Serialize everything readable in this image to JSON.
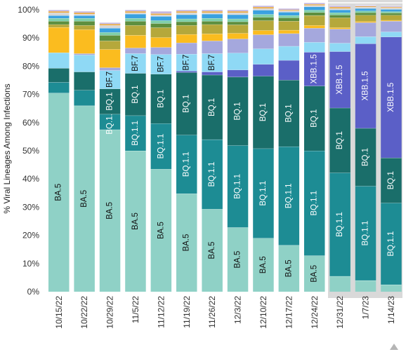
{
  "chart_data": {
    "type": "bar",
    "stacked": true,
    "ylabel": "% Viral Lineages Among Infections",
    "ylim": [
      0,
      100
    ],
    "yticks": [
      "0%",
      "10%",
      "20%",
      "30%",
      "40%",
      "50%",
      "60%",
      "70%",
      "80%",
      "90%",
      "100%"
    ],
    "categories": [
      "10/15/22",
      "10/22/22",
      "10/29/22",
      "11/5/22",
      "11/12/22",
      "11/19/22",
      "11/26/22",
      "12/3/22",
      "12/10/22",
      "12/17/22",
      "12/24/22",
      "12/31/22",
      "1/7/23",
      "1/14/23"
    ],
    "highlighted_categories": [
      "12/31/22",
      "1/7/23",
      "1/14/23"
    ],
    "series": [
      {
        "name": "BA.5",
        "color": "#8fd1c6",
        "label_color": "#111111",
        "values": [
          70.5,
          66,
          57.5,
          50,
          43.5,
          34.8,
          29.3,
          22.8,
          19,
          16.5,
          12.8,
          5.5,
          4,
          2.5
        ],
        "labels": [
          "BA.5",
          "BA.5",
          "BA.5",
          "BA.5",
          "BA.5",
          "BA.5",
          "BA.5",
          "BA.5",
          "BA.5",
          "BA.5",
          "BA.5",
          "",
          "",
          ""
        ]
      },
      {
        "name": "BQ.1.1",
        "color": "#1d8c94",
        "label_color": "#ffffff",
        "values": [
          3.8,
          5.5,
          5.5,
          12.5,
          16.2,
          20.8,
          24.7,
          29.1,
          31.8,
          35,
          37.2,
          36.7,
          33.5,
          29
        ],
        "labels": [
          "",
          "",
          "BQ.1.1",
          "BQ.1.1",
          "BQ.1.1",
          "BQ.1.1",
          "BQ.1.1",
          "BQ.1.1",
          "BQ.1.1",
          "BQ.1.1",
          "BQ.1.1",
          "BQ.1.1",
          "BQ.1.1",
          "BQ.1.1"
        ]
      },
      {
        "name": "BQ.1",
        "color": "#1a6e6a",
        "label_color": "#ffffff",
        "values": [
          5,
          6.5,
          9,
          15,
          17.5,
          22.2,
          22.9,
          24.3,
          25.7,
          23.6,
          23,
          23,
          20.5,
          16
        ],
        "labels": [
          "",
          "",
          "BQ.1",
          "BQ.1",
          "BQ.1",
          "BQ.1",
          "BQ.1",
          "BQ.1",
          "BQ.1",
          "BQ.1",
          "BQ.1",
          "BQ.1",
          "BQ.1",
          "BQ.1"
        ]
      },
      {
        "name": "XBB.1.5",
        "color": "#5b5fc7",
        "label_color": "#ffffff",
        "values": [
          0,
          0,
          0,
          0,
          0,
          0.5,
          1.1,
          2.5,
          4.2,
          7,
          12,
          20,
          30,
          42.9
        ],
        "labels": [
          "",
          "",
          "",
          "",
          "",
          "",
          "",
          "",
          "",
          "",
          "XBB.1.5",
          "XBB.1.5",
          "XBB.1.5",
          "XBB.1.5"
        ]
      },
      {
        "name": "BF.7",
        "color": "#8fd9f5",
        "label_color": "#111111",
        "values": [
          5.5,
          6,
          6.5,
          7,
          7,
          6,
          6.5,
          6,
          5.5,
          5,
          3.5,
          3,
          2.5,
          1.8
        ],
        "labels": [
          "",
          "",
          "BF.7",
          "BF.7",
          "BF.7",
          "BF.7",
          "BF.7",
          "",
          "",
          "",
          "",
          "",
          "",
          ""
        ]
      },
      {
        "name": "",
        "color": "#a5a8dd",
        "label_color": "#111111",
        "values": [
          0,
          0.5,
          1,
          2,
          2.5,
          4,
          4.5,
          5,
          5,
          4.5,
          5,
          5,
          5,
          3.8
        ],
        "labels": [
          "",
          "",
          "",
          "",
          "",
          "",
          "",
          "",
          "",
          "",
          "",
          "",
          "",
          ""
        ]
      },
      {
        "name": "",
        "color": "#fbbc1f",
        "label_color": "#111111",
        "values": [
          9,
          8.5,
          6.5,
          4.5,
          3.5,
          3,
          2.5,
          2,
          1.5,
          1.2,
          1,
          0.5,
          0.4,
          0.3
        ],
        "labels": [
          "",
          "",
          "",
          "",
          "",
          "",
          "",
          "",
          "",
          "",
          "",
          "",
          "",
          ""
        ]
      },
      {
        "name": "",
        "color": "#b5a83b",
        "label_color": "#111111",
        "values": [
          1,
          1.5,
          3,
          3.5,
          3.5,
          3.2,
          3.3,
          3,
          3.5,
          3.2,
          3.5,
          3.5,
          2.2,
          1.8
        ],
        "labels": [
          "",
          "",
          "",
          "",
          "",
          "",
          "",
          "",
          "",
          "",
          "",
          "",
          "",
          ""
        ]
      },
      {
        "name": "",
        "color": "#5d8f3f",
        "label_color": "#111111",
        "values": [
          1.2,
          1.5,
          2,
          1.5,
          1.5,
          1.3,
          1.2,
          1.1,
          1.2,
          1.2,
          1.1,
          1,
          0.9,
          0.8
        ],
        "labels": [
          "",
          "",
          "",
          "",
          "",
          "",
          "",
          "",
          "",
          "",
          "",
          "",
          "",
          ""
        ]
      },
      {
        "name": "",
        "color": "#7fcfa9",
        "label_color": "#111111",
        "values": [
          1,
          1,
          1,
          1,
          1,
          1,
          1,
          1,
          1,
          0.8,
          0.8,
          0.8,
          0.6,
          0.5
        ],
        "labels": [
          "",
          "",
          "",
          "",
          "",
          "",
          "",
          "",
          "",
          "",
          "",
          "",
          "",
          ""
        ]
      },
      {
        "name": "",
        "color": "#3aa1e0",
        "label_color": "#111111",
        "values": [
          1,
          1,
          1.5,
          1.5,
          1.5,
          1.5,
          1.5,
          1.5,
          1.5,
          1.2,
          1.2,
          1,
          0.9,
          0.8
        ],
        "labels": [
          "",
          "",
          "",
          "",
          "",
          "",
          "",
          "",
          "",
          "",
          "",
          "",
          "",
          ""
        ]
      },
      {
        "name": "",
        "color": "#d6d6d6",
        "label_color": "#111111",
        "values": [
          1,
          0.5,
          1,
          0.5,
          0.5,
          0.7,
          0.5,
          0.7,
          0.6,
          0.5,
          0.5,
          0.5,
          0.5,
          0.5
        ],
        "labels": [
          "",
          "",
          "",
          "",
          "",
          "",
          "",
          "",
          "",
          "",
          "",
          "",
          "",
          ""
        ]
      },
      {
        "name": "",
        "color": "#e8a63b",
        "label_color": "#111111",
        "values": [
          0.5,
          0.5,
          0.5,
          0.5,
          0.5,
          0.5,
          0.5,
          0.5,
          0.5,
          0.3,
          0.4,
          0.5,
          0.3,
          0.3
        ],
        "labels": [
          "",
          "",
          "",
          "",
          "",
          "",
          "",
          "",
          "",
          "",
          "",
          "",
          "",
          ""
        ]
      },
      {
        "name": "",
        "color": "#c4b7e0",
        "label_color": "#111111",
        "values": [
          0.5,
          0.5,
          0.5,
          0.5,
          0.8,
          0.5,
          0.5,
          0.5,
          0.5,
          0.5,
          0.5,
          0.5,
          0.3,
          0.3
        ],
        "labels": [
          "",
          "",
          "",
          "",
          "",
          "",
          "",
          "",
          "",
          "",
          "",
          "",
          "",
          ""
        ]
      }
    ]
  }
}
